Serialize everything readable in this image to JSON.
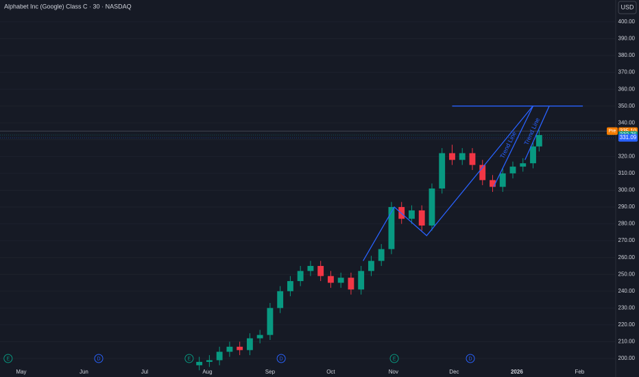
{
  "chart_data": {
    "type": "candlestick",
    "title": "Alphabet Inc (Google) Class C · 30 · NASDAQ",
    "currency": "USD",
    "x": [
      88,
      93,
      98,
      103,
      108,
      113,
      118,
      123,
      128,
      133,
      138,
      143,
      148,
      153,
      158,
      163,
      168,
      173,
      178,
      183,
      188,
      193,
      198,
      203,
      208,
      213,
      218,
      223,
      228,
      233,
      238,
      243,
      248,
      253,
      256
    ],
    "open": [
      196,
      198,
      199,
      204,
      207,
      205,
      212,
      214,
      230,
      240,
      246,
      252,
      255,
      249,
      245,
      248,
      241,
      252,
      258,
      265,
      290,
      283,
      288,
      279,
      301,
      322,
      318,
      322,
      315,
      306,
      302,
      310,
      314,
      316,
      326
    ],
    "high": [
      201,
      202,
      207,
      210,
      210,
      215,
      217,
      233,
      243,
      249,
      255,
      258,
      258,
      252,
      251,
      251,
      255,
      261,
      268,
      293,
      293,
      291,
      291,
      304,
      325,
      327,
      325,
      325,
      318,
      309,
      313,
      317,
      319,
      329,
      335.76
    ],
    "low": [
      193,
      195,
      196,
      201,
      202,
      202,
      209,
      211,
      227,
      237,
      243,
      249,
      246,
      242,
      242,
      238,
      238,
      249,
      255,
      262,
      280,
      280,
      276,
      276,
      298,
      315,
      315,
      312,
      303,
      299,
      299,
      307,
      311,
      313,
      323
    ],
    "close": [
      198,
      199,
      204,
      207,
      205,
      212,
      214,
      230,
      240,
      246,
      252,
      255,
      249,
      245,
      248,
      241,
      252,
      258,
      265,
      290,
      283,
      288,
      279,
      301,
      322,
      318,
      322,
      315,
      306,
      302,
      310,
      314,
      316,
      326,
      332.76
    ],
    "up_color": "#089981",
    "down_color": "#f23645",
    "xlim": [
      -10.5,
      293.5
    ],
    "xticks": [
      {
        "value": 0,
        "label": "May"
      },
      {
        "value": 31,
        "label": "Jun"
      },
      {
        "value": 61,
        "label": "Jul"
      },
      {
        "value": 92,
        "label": "Aug"
      },
      {
        "value": 123,
        "label": "Sep"
      },
      {
        "value": 153,
        "label": "Oct"
      },
      {
        "value": 184,
        "label": "Nov"
      },
      {
        "value": 214,
        "label": "Dec"
      },
      {
        "value": 245,
        "label": "2026"
      },
      {
        "value": 276,
        "label": "Feb"
      }
    ],
    "ylim": [
      193.9,
      413.0
    ],
    "yticks": [
      {
        "value": 200,
        "label": "200.00"
      },
      {
        "value": 210,
        "label": "210.00"
      },
      {
        "value": 220,
        "label": "220.00"
      },
      {
        "value": 230,
        "label": "230.00"
      },
      {
        "value": 240,
        "label": "240.00"
      },
      {
        "value": 250,
        "label": "250.00"
      },
      {
        "value": 260,
        "label": "260.00"
      },
      {
        "value": 270,
        "label": "270.00"
      },
      {
        "value": 280,
        "label": "280.00"
      },
      {
        "value": 290,
        "label": "290.00"
      },
      {
        "value": 300,
        "label": "300.00"
      },
      {
        "value": 310,
        "label": "310.00"
      },
      {
        "value": 320,
        "label": "320.00"
      },
      {
        "value": 330,
        "label": "330.00"
      },
      {
        "value": 340,
        "label": "340.00"
      },
      {
        "value": 350,
        "label": "350.00"
      },
      {
        "value": 360,
        "label": "360.00"
      },
      {
        "value": 370,
        "label": "370.00"
      },
      {
        "value": 380,
        "label": "380.00"
      },
      {
        "value": 390,
        "label": "390.00"
      },
      {
        "value": 400,
        "label": "400.00"
      }
    ],
    "price_labels": [
      {
        "label": "Pre",
        "value": 335.1,
        "value_label": "335.10",
        "color": "#f57c00"
      },
      {
        "value": 332.76,
        "color": "#089981"
      },
      {
        "value": 331.09,
        "color": "#2962ff"
      }
    ],
    "drawings": [
      {
        "color": "#2962ff",
        "x": [
          169,
          184.4,
          200.4,
          252.9
        ],
        "y": [
          258,
          290,
          273,
          350
        ]
      },
      {
        "color": "#2962ff",
        "x": [
          213,
          277.6
        ],
        "y": [
          350,
          350
        ]
      },
      {
        "color": "#2962ff",
        "label": "Trend Line",
        "x": [
          233.5,
          253
        ],
        "y": [
          302,
          350
        ]
      },
      {
        "color": "#2962ff",
        "label": "Trend Line",
        "x": [
          249,
          261
        ],
        "y": [
          318,
          350
        ]
      }
    ],
    "events": [
      {
        "label": "E",
        "x": -6.5,
        "color": "#089981"
      },
      {
        "label": "D",
        "x": 38.3,
        "color": "#2962ff"
      },
      {
        "label": "E",
        "x": 83,
        "color": "#089981"
      },
      {
        "label": "D",
        "x": 128.5,
        "color": "#2962ff"
      },
      {
        "label": "E",
        "x": 184.4,
        "color": "#089981"
      },
      {
        "label": "D",
        "x": 222,
        "color": "#2962ff"
      }
    ]
  }
}
